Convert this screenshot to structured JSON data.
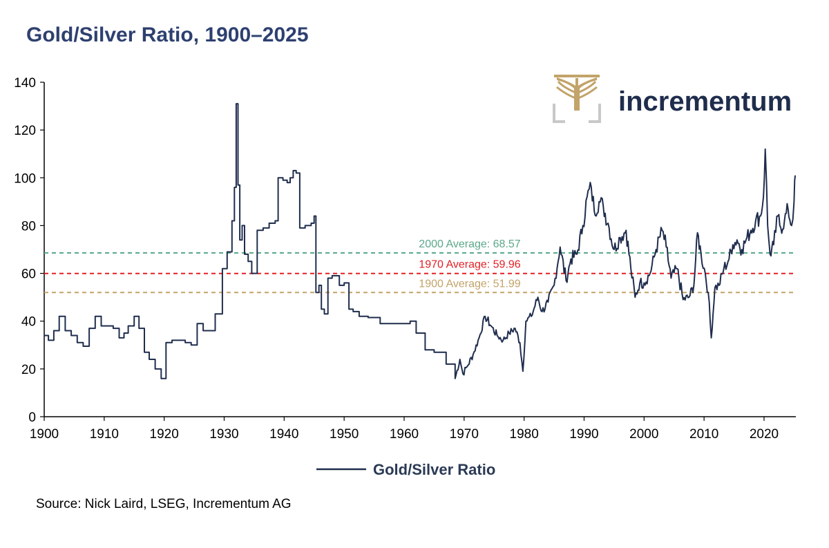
{
  "title": "Gold/Silver Ratio, 1900–2025",
  "source": "Source: Nick Laird, LSEG, Incrementum AG",
  "logo": {
    "name": "incrementum",
    "icon": "tree-icon",
    "text_color": "#1f2d4d",
    "gold": "#c2a369",
    "gray": "#c8c8c8"
  },
  "colors": {
    "title": "#2e4070",
    "series": "#1f2d4d",
    "avg2000": "#5aa888",
    "avg1970": "#e31e24",
    "avg1900": "#c2a369",
    "axis": "#000000"
  },
  "chart_data": {
    "type": "line",
    "title": "Gold/Silver Ratio, 1900–2025",
    "xlabel": "",
    "ylabel": "",
    "xlim": [
      1900,
      2025.3
    ],
    "ylim": [
      0,
      140
    ],
    "x_ticks": [
      "1900",
      "1910",
      "1920",
      "1930",
      "1940",
      "1950",
      "1960",
      "1970",
      "1980",
      "1990",
      "2000",
      "2010",
      "2020"
    ],
    "y_ticks": [
      "0",
      "20",
      "40",
      "60",
      "80",
      "100",
      "120",
      "140"
    ],
    "legend": {
      "position": "bottom",
      "entries": [
        "Gold/Silver Ratio"
      ]
    },
    "reference_lines": [
      {
        "label": "2000 Average: 68.57",
        "value": 68.57,
        "color": "#5aa888",
        "style": "dashed"
      },
      {
        "label": "1970 Average: 59.96",
        "value": 59.96,
        "color": "#e31e24",
        "style": "dashed"
      },
      {
        "label": "1900 Average: 51.99",
        "value": 51.99,
        "color": "#c2a369",
        "style": "dashed"
      }
    ],
    "series": [
      {
        "name": "Gold/Silver Ratio",
        "color": "#1f2d4d",
        "points": [
          [
            1900,
            34
          ],
          [
            1900.7,
            32
          ],
          [
            1901.6,
            36
          ],
          [
            1902.5,
            42
          ],
          [
            1903.5,
            36
          ],
          [
            1904.5,
            34
          ],
          [
            1905.5,
            31
          ],
          [
            1906.5,
            29.5
          ],
          [
            1907.5,
            37
          ],
          [
            1908.5,
            42
          ],
          [
            1909.5,
            38
          ],
          [
            1910.5,
            38
          ],
          [
            1911.5,
            37
          ],
          [
            1912.5,
            33
          ],
          [
            1913.3,
            35
          ],
          [
            1914,
            38
          ],
          [
            1915,
            42
          ],
          [
            1915.8,
            37
          ],
          [
            1916.7,
            27
          ],
          [
            1917.5,
            24
          ],
          [
            1918.5,
            20
          ],
          [
            1919.5,
            16
          ],
          [
            1920.3,
            31
          ],
          [
            1921.3,
            32
          ],
          [
            1922.5,
            32
          ],
          [
            1923.5,
            31
          ],
          [
            1924.5,
            30
          ],
          [
            1925.5,
            39
          ],
          [
            1926.5,
            36
          ],
          [
            1927.5,
            36
          ],
          [
            1928.5,
            43
          ],
          [
            1929.5,
            43
          ],
          [
            1929.7,
            62
          ],
          [
            1930.5,
            69
          ],
          [
            1931.3,
            82
          ],
          [
            1931.7,
            96
          ],
          [
            1932.0,
            131
          ],
          [
            1932.3,
            97
          ],
          [
            1932.6,
            74
          ],
          [
            1933.0,
            80
          ],
          [
            1933.4,
            68
          ],
          [
            1934.0,
            65
          ],
          [
            1934.6,
            60
          ],
          [
            1935.5,
            78
          ],
          [
            1936.5,
            79
          ],
          [
            1937.5,
            81
          ],
          [
            1938.5,
            82
          ],
          [
            1939.0,
            100
          ],
          [
            1939.8,
            99
          ],
          [
            1940.5,
            98
          ],
          [
            1941,
            100
          ],
          [
            1941.5,
            103
          ],
          [
            1942,
            102
          ],
          [
            1942.6,
            79
          ],
          [
            1943.5,
            80
          ],
          [
            1944.5,
            81
          ],
          [
            1945.0,
            84
          ],
          [
            1945.3,
            52
          ],
          [
            1945.8,
            55
          ],
          [
            1946.2,
            45
          ],
          [
            1946.7,
            43
          ],
          [
            1947.3,
            58
          ],
          [
            1948.0,
            59
          ],
          [
            1948.6,
            59
          ],
          [
            1949.2,
            55
          ],
          [
            1950.0,
            56
          ],
          [
            1950.8,
            45
          ],
          [
            1951.5,
            44
          ],
          [
            1952.5,
            42
          ],
          [
            1954,
            41.5
          ],
          [
            1956,
            39
          ],
          [
            1958,
            39
          ],
          [
            1960,
            39
          ],
          [
            1961,
            40
          ],
          [
            1962,
            35
          ],
          [
            1963.5,
            28
          ],
          [
            1965,
            27
          ],
          [
            1966,
            27
          ],
          [
            1967,
            22
          ],
          [
            1968.5,
            16
          ],
          [
            1969.3,
            24
          ],
          [
            1969.8,
            18
          ],
          [
            1970.5,
            21
          ],
          [
            1971.5,
            26
          ],
          [
            1972.5,
            33
          ],
          [
            1973.5,
            42
          ],
          [
            1974.5,
            38
          ],
          [
            1975.5,
            34
          ],
          [
            1976.5,
            32
          ],
          [
            1977.5,
            35
          ],
          [
            1978.5,
            37
          ],
          [
            1979.3,
            31
          ],
          [
            1979.8,
            19
          ],
          [
            1980.3,
            40
          ],
          [
            1981.2,
            42
          ],
          [
            1982.3,
            50
          ],
          [
            1983.0,
            44
          ],
          [
            1984.0,
            48
          ],
          [
            1985.0,
            55
          ],
          [
            1986.0,
            71
          ],
          [
            1987.0,
            57
          ],
          [
            1987.8,
            66
          ],
          [
            1988.8,
            68
          ],
          [
            1989.8,
            80
          ],
          [
            1990.5,
            92
          ],
          [
            1991.2,
            96
          ],
          [
            1991.7,
            86
          ],
          [
            1992.5,
            90
          ],
          [
            1993.2,
            88
          ],
          [
            1994.0,
            81
          ],
          [
            1995.0,
            70
          ],
          [
            1996.0,
            75
          ],
          [
            1997.0,
            78
          ],
          [
            1997.8,
            62
          ],
          [
            1998.5,
            50
          ],
          [
            1999.3,
            56
          ],
          [
            2000.0,
            56
          ],
          [
            2001.0,
            60
          ],
          [
            2002.0,
            70
          ],
          [
            2003.0,
            78
          ],
          [
            2003.7,
            71
          ],
          [
            2004.5,
            58
          ],
          [
            2005.5,
            62
          ],
          [
            2006.5,
            49
          ],
          [
            2007.5,
            50
          ],
          [
            2008.3,
            55
          ],
          [
            2008.9,
            77
          ],
          [
            2009.5,
            68
          ],
          [
            2010.2,
            60
          ],
          [
            2010.7,
            52
          ],
          [
            2011.2,
            33
          ],
          [
            2011.8,
            54
          ],
          [
            2012.5,
            55
          ],
          [
            2013.3,
            62
          ],
          [
            2014.0,
            65
          ],
          [
            2014.8,
            72
          ],
          [
            2015.5,
            74
          ],
          [
            2016.3,
            70
          ],
          [
            2017.0,
            74
          ],
          [
            2017.8,
            78
          ],
          [
            2018.6,
            82
          ],
          [
            2019.4,
            84
          ],
          [
            2019.9,
            92
          ],
          [
            2020.2,
            112
          ],
          [
            2020.6,
            80
          ],
          [
            2021.0,
            68
          ],
          [
            2021.6,
            72
          ],
          [
            2022.3,
            84
          ],
          [
            2022.8,
            79
          ],
          [
            2023.4,
            82
          ],
          [
            2024.0,
            87
          ],
          [
            2024.6,
            80
          ],
          [
            2025.0,
            90
          ],
          [
            2025.2,
            101
          ]
        ]
      }
    ]
  }
}
